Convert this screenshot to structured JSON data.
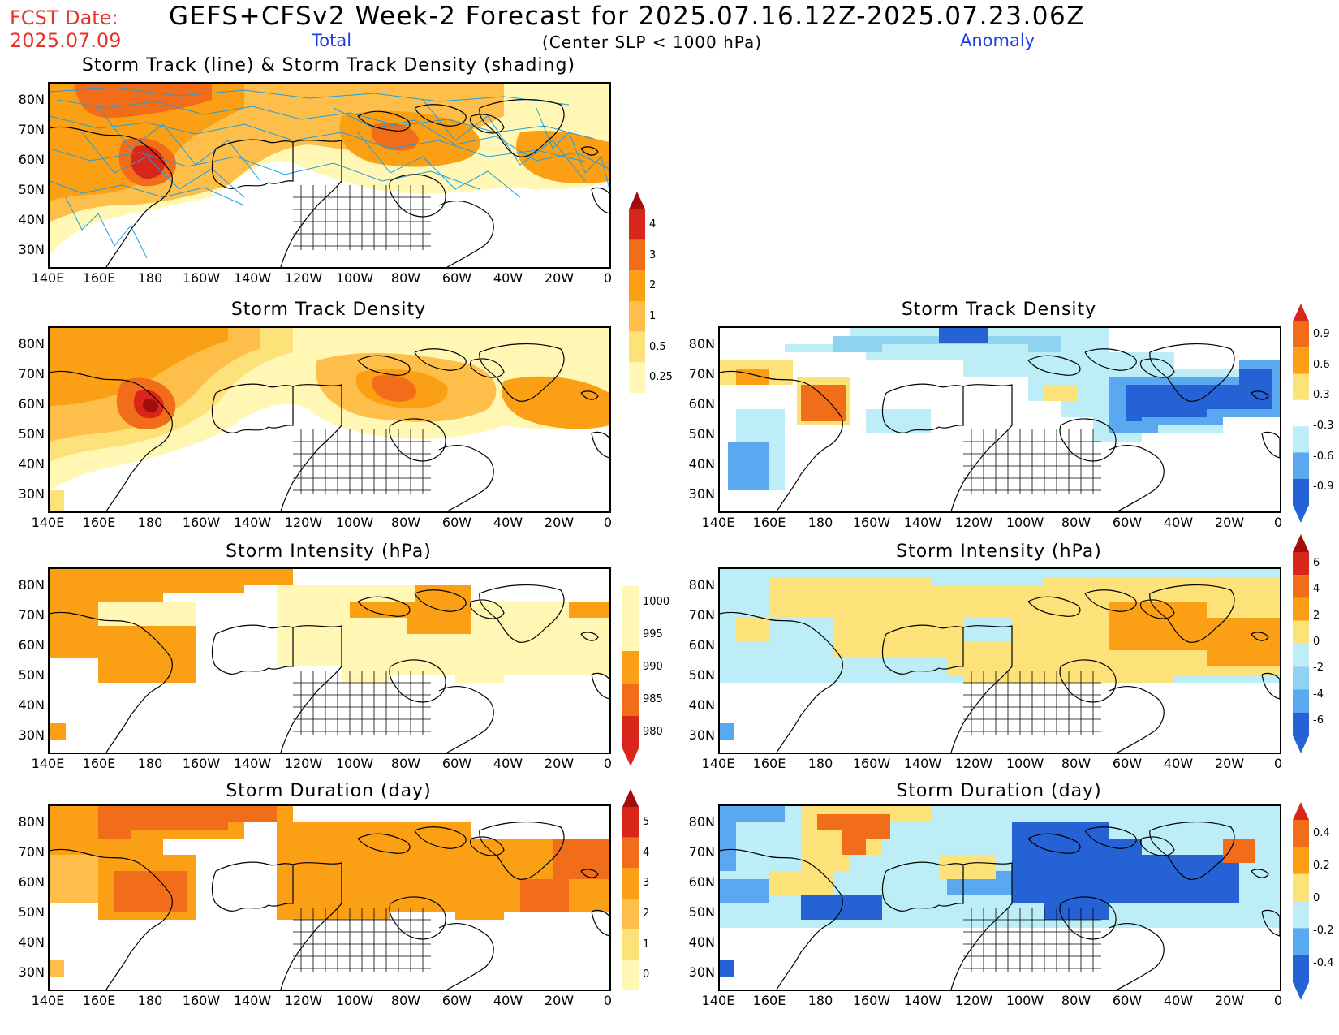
{
  "header": {
    "fcst_label": "FCST Date:",
    "fcst_date": "2025.07.09",
    "main_title": "GEFS+CFSv2 Week-2 Forecast for 2025.07.16.12Z-2025.07.23.06Z",
    "subtitle": "(Center SLP < 1000 hPa)",
    "total_label": "Total",
    "anomaly_label": "Anomaly"
  },
  "axes": {
    "lat_labels": [
      "80N",
      "70N",
      "60N",
      "50N",
      "40N",
      "30N"
    ],
    "lon_labels": [
      "140E",
      "160E",
      "180",
      "160W",
      "140W",
      "120W",
      "100W",
      "80W",
      "60W",
      "40W",
      "20W",
      "0"
    ]
  },
  "colors": {
    "pale_yellow": "#fff7b3",
    "yellow": "#fde27a",
    "light_orange": "#fdbf4a",
    "orange": "#fb9f14",
    "dark_orange": "#f26d1a",
    "red": "#d9261b",
    "dark_red": "#a30d0d",
    "light_blue": "#bdeef7",
    "mid_blue": "#8fd3f0",
    "blue": "#5aa8ef",
    "dark_blue": "#2462d6",
    "track_line": "#1f9fe0",
    "coast": "#000000"
  },
  "panels": {
    "p1": {
      "title": "Storm Track (line) & Storm Track Density (shading)"
    },
    "p2": {
      "title": "Storm Track Density"
    },
    "p3": {
      "title": "Storm Track Density"
    },
    "p4": {
      "title": "Storm Intensity (hPa)"
    },
    "p5": {
      "title": "Storm Intensity (hPa)"
    },
    "p6": {
      "title": "Storm Duration (day)"
    },
    "p7": {
      "title": "Storm Duration (day)"
    }
  },
  "colorbars": {
    "density_total": {
      "labels": [
        "4",
        "3",
        "2",
        "1",
        "0.5",
        "0.25"
      ]
    },
    "density_anom": {
      "labels": [
        "0.9",
        "0.6",
        "0.3",
        "-0.3",
        "-0.6",
        "-0.9"
      ]
    },
    "intensity_total": {
      "labels": [
        "1000",
        "995",
        "990",
        "985",
        "980"
      ]
    },
    "intensity_anom": {
      "labels": [
        "6",
        "4",
        "2",
        "0",
        "-2",
        "-4",
        "-6"
      ]
    },
    "duration_total": {
      "labels": [
        "5",
        "4",
        "3",
        "2",
        "1",
        "0"
      ]
    },
    "duration_anom": {
      "labels": [
        "0.4",
        "0.2",
        "0",
        "-0.2",
        "-0.4"
      ]
    }
  }
}
